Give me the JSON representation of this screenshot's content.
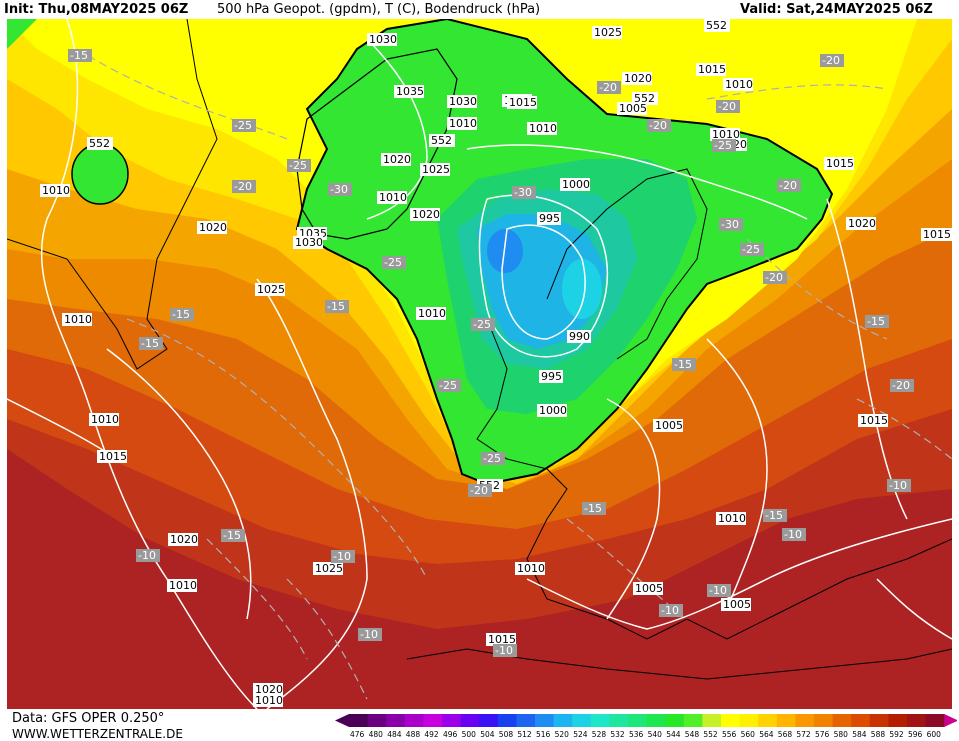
{
  "header": {
    "init": "Init: Thu,08MAY2025 06Z",
    "title": "500 hPa Geopot. (gpdm), T (C), Bodendruck (hPa)",
    "valid": "Valid: Sat,24MAY2025 06Z"
  },
  "footer": {
    "source": "Data: GFS OPER 0.250°",
    "website": "WWW.WETTERZENTRALE.DE"
  },
  "colorbar": {
    "ticks": [
      "476",
      "480",
      "484",
      "488",
      "492",
      "496",
      "500",
      "504",
      "508",
      "512",
      "516",
      "520",
      "524",
      "528",
      "532",
      "536",
      "540",
      "544",
      "548",
      "552",
      "556",
      "560",
      "564",
      "568",
      "572",
      "576",
      "580",
      "584",
      "588",
      "592",
      "596",
      "600"
    ],
    "colors": [
      "#4b0057",
      "#6a0080",
      "#8a00a8",
      "#a800c8",
      "#c800e0",
      "#9b00e6",
      "#6a00f0",
      "#3a10f5",
      "#1840f0",
      "#1e64f0",
      "#1e8cf0",
      "#1eb4f0",
      "#1ed2e6",
      "#1ee6c8",
      "#1ee6a0",
      "#1ee678",
      "#1ee650",
      "#28e628",
      "#50f028",
      "#c8f028",
      "#ffff00",
      "#fff000",
      "#ffd200",
      "#ffb400",
      "#fa9600",
      "#f08200",
      "#e66400",
      "#dc4b00",
      "#c83200",
      "#b41e00",
      "#a01414",
      "#8c0a28"
    ]
  },
  "map_colors": {
    "band_552_556": "#ffff00",
    "band_556_560": "#ffe600",
    "band_560_564": "#ffc800",
    "band_564_568": "#f5a500",
    "band_568_572": "#ee8a00",
    "band_572_576": "#e06a08",
    "band_576_580": "#d44a10",
    "band_580_584": "#c0341a",
    "band_584_588": "#ad2222",
    "trough_548": "#32e632",
    "trough_544": "#1ed26e",
    "trough_540": "#1ec8a0",
    "trough_536": "#1eb4e6",
    "trough_532": "#1e8cf0"
  },
  "geopotential_labels": [
    "552",
    "552",
    "552",
    "552",
    "552"
  ],
  "pressure_labels": [
    "1030",
    "1025",
    "1015",
    "1020",
    "1015",
    "1010",
    "1005",
    "1035",
    "1030",
    "1010",
    "1015",
    "1010",
    "1020",
    "1025",
    "1010",
    "1010",
    "1020",
    "1035",
    "1030",
    "1000",
    "995",
    "1020",
    "1025",
    "1010",
    "1010",
    "990",
    "1015",
    "995",
    "1000",
    "1005",
    "1010",
    "1015",
    "1020",
    "1020",
    "1025",
    "1010",
    "1005",
    "1005",
    "1015",
    "1010",
    "1015",
    "1020",
    "1010",
    "1015",
    "1010",
    "1010",
    "1020"
  ],
  "temperature_labels": [
    "-15",
    "-20",
    "-20",
    "-25",
    "-20",
    "-20",
    "-25",
    "-30",
    "-25",
    "-20",
    "-15",
    "-30",
    "-25",
    "-15",
    "-25",
    "-30",
    "-20",
    "-15",
    "-10",
    "-15",
    "-15",
    "-25",
    "-20",
    "-15",
    "-15",
    "-10",
    "-10",
    "-10",
    "-15",
    "-10",
    "-10",
    "-10",
    "-10",
    "-25",
    "-20",
    "-20",
    "-25"
  ]
}
